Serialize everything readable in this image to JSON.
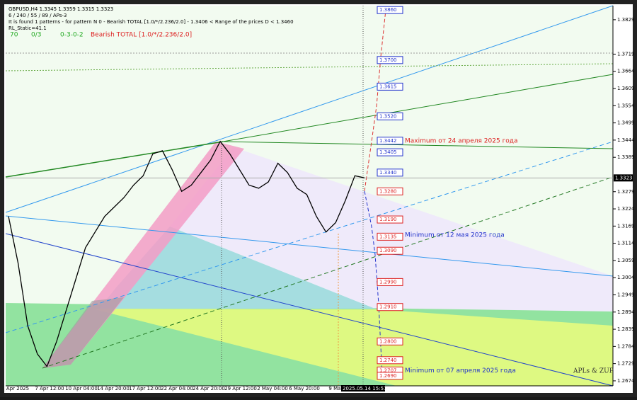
{
  "header": {
    "symbol": "GBPUSD,H4  1.3345 1.3359 1.3315 1.3323",
    "params": "6 / 240 / 55 / 89 / APs-3",
    "pattern": "It is found 1 patterns - for pattern N 0 - Bearish TOTAL [1.0/*/2.236/2.0] - 1.3406 < Range of the prices D < 1.3460",
    "static": "RL_Static=41.1",
    "stats": [
      "70",
      "0/3",
      "0-3-0-2",
      "Bearish TOTAL [1.0/*/2.236/2.0]"
    ]
  },
  "chart_data": {
    "type": "line",
    "color": "#000000",
    "values": [
      1.32,
      1.305,
      1.285,
      1.276,
      1.272,
      1.28,
      1.29,
      1.3,
      1.31,
      1.315,
      1.32,
      1.323,
      1.326,
      1.33,
      1.333,
      1.34,
      1.341,
      1.335,
      1.328,
      1.33,
      1.334,
      1.338,
      1.344,
      1.34,
      1.335,
      1.33,
      1.329,
      1.331,
      1.337,
      1.334,
      1.329,
      1.327,
      1.32,
      1.315,
      1.318,
      1.325,
      1.333,
      1.3323
    ],
    "ylim": [
      1.3874,
      1.2658
    ],
    "yticks": [
      1.3829,
      1.3719,
      1.3664,
      1.3609,
      1.3554,
      1.3499,
      1.3444,
      1.3389,
      1.3279,
      1.3224,
      1.3169,
      1.3114,
      1.3059,
      1.3004,
      1.2949,
      1.2894,
      1.2839,
      1.2784,
      1.2729,
      1.2674
    ],
    "current_price": 1.3323,
    "xtick_labels": [
      "Apr 2025",
      "7 Apr 12:00",
      "10 Apr 04:00",
      "14 Apr 20:00",
      "17 Apr 12:00",
      "22 Apr 04:00",
      "24 Apr 20:00",
      "29 Apr 12:00",
      "2 May 04:00",
      "6 May 20:00",
      "9 May"
    ],
    "current_time": "2025.05.14 15:57",
    "levels": [
      {
        "value": 1.386,
        "label": "1.3860",
        "color": "#2233cc"
      },
      {
        "value": 1.37,
        "label": "1.3700",
        "color": "#2233cc"
      },
      {
        "value": 1.3615,
        "color": "#2233cc"
      },
      {
        "value": 1.352,
        "label": "1.3520",
        "color": "#2233cc"
      },
      {
        "value": 1.3442,
        "color": "#2233cc"
      },
      {
        "value": 1.3405,
        "color": "#2233cc"
      },
      {
        "value": 1.334,
        "label": "1.3340",
        "color": "#2233cc"
      },
      {
        "value": 1.328,
        "label": "1.3280",
        "color": "#dd2222"
      },
      {
        "value": 1.319,
        "label": "1.3190",
        "color": "#dd2222"
      },
      {
        "value": 1.3135,
        "color": "#dd2222"
      },
      {
        "value": 1.309,
        "label": "1.3090",
        "color": "#dd2222"
      },
      {
        "value": 1.299,
        "label": "1.2990",
        "color": "#dd2222"
      },
      {
        "value": 1.291,
        "label": "1.2910",
        "color": "#dd2222"
      },
      {
        "value": 1.28,
        "label": "1.2800",
        "color": "#dd2222"
      },
      {
        "value": 1.274,
        "label": "1.2740",
        "color": "#dd2222"
      },
      {
        "value": 1.2707,
        "color": "#dd2222"
      },
      {
        "value": 1.269,
        "label": "1.2690",
        "color": "#dd2222"
      }
    ],
    "annotations": [
      {
        "text": "Maximum от 24 апреля 2025 года",
        "value": 1.3442,
        "color": "#dd2222"
      },
      {
        "text": "Minimum от 12 мая 2025 года",
        "value": 1.314,
        "color": "#2233cc"
      },
      {
        "text": "Minimum от 07 апреля 2025 года",
        "value": 1.2707,
        "color": "#2233cc"
      }
    ],
    "watermark": "APLs & ZUP"
  }
}
